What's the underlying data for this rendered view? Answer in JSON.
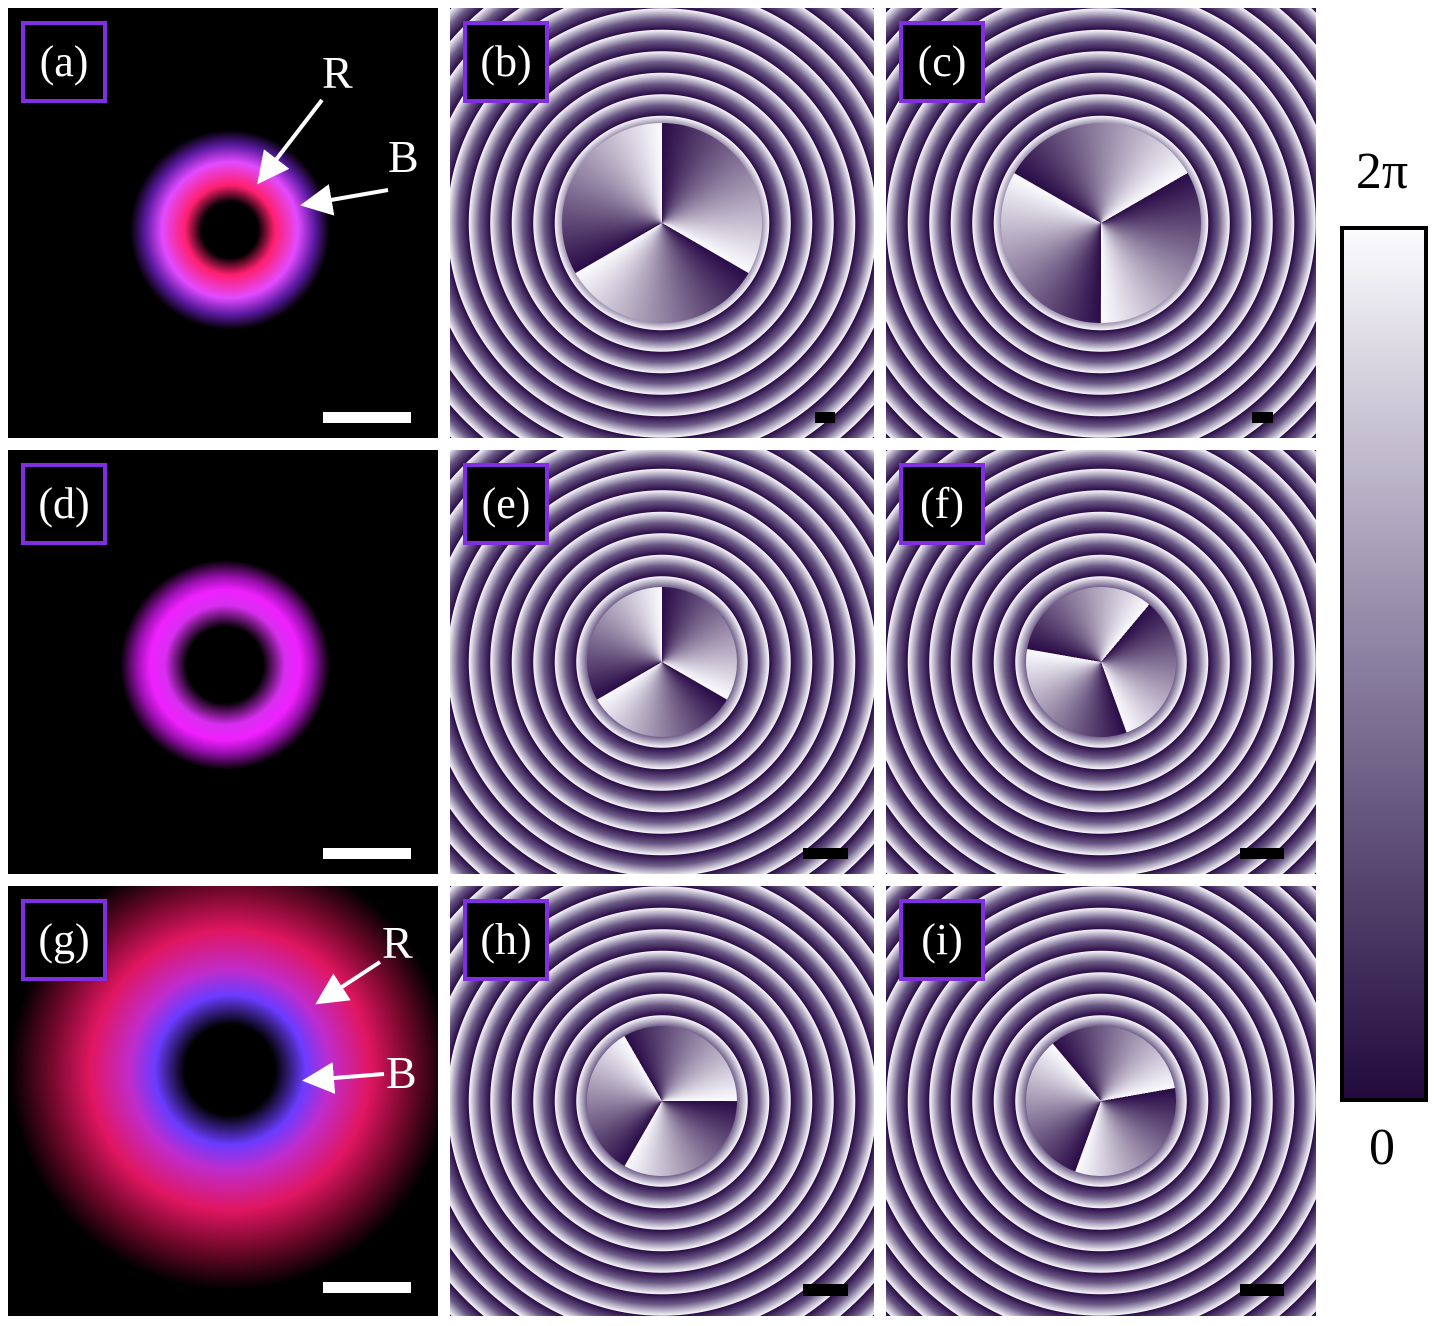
{
  "panels": [
    {
      "label": "(a)",
      "annotations": [
        "R",
        "B"
      ]
    },
    {
      "label": "(b)"
    },
    {
      "label": "(c)"
    },
    {
      "label": "(d)"
    },
    {
      "label": "(e)"
    },
    {
      "label": "(f)"
    },
    {
      "label": "(g)",
      "annotations": [
        "R",
        "B"
      ]
    },
    {
      "label": "(h)"
    },
    {
      "label": "(i)"
    }
  ],
  "colorbar": {
    "max_label": "2π",
    "min_label": "0"
  }
}
